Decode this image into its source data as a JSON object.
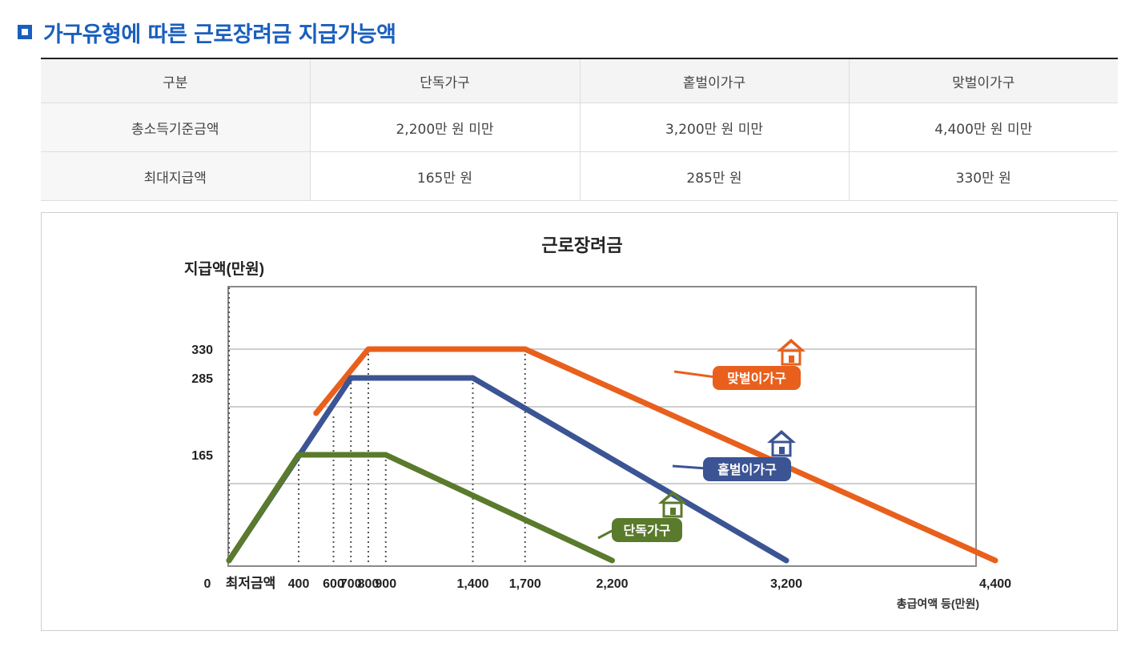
{
  "heading": {
    "title": "가구유형에 따른 근로장려금 지급가능액"
  },
  "table": {
    "headers": [
      "구분",
      "단독가구",
      "홑벌이가구",
      "맞벌이가구"
    ],
    "rows": [
      [
        "총소득기준금액",
        "2,200만 원 미만",
        "3,200만 원 미만",
        "4,400만 원 미만"
      ],
      [
        "최대지급액",
        "165만 원",
        "285만 원",
        "330만 원"
      ]
    ]
  },
  "chart_data": {
    "type": "line",
    "title": "근로장려금",
    "ylabel": "지급액(만원)",
    "xlabel": "총급여액 등(만원)",
    "xlim": [
      0,
      4500
    ],
    "ylim": [
      0,
      390
    ],
    "origin_label": "0",
    "min_label": "최저금액",
    "x_ticks": [
      {
        "value": 400,
        "label": "400"
      },
      {
        "value": 600,
        "label": "600"
      },
      {
        "value": 700,
        "label": "700"
      },
      {
        "value": 800,
        "label": "800"
      },
      {
        "value": 900,
        "label": "900"
      },
      {
        "value": 1400,
        "label": "1,400"
      },
      {
        "value": 1700,
        "label": "1,700"
      },
      {
        "value": 2200,
        "label": "2,200"
      },
      {
        "value": 3200,
        "label": "3,200"
      },
      {
        "value": 4400,
        "label": "4,400"
      }
    ],
    "y_ticks": [
      {
        "value": 165,
        "label": "165"
      },
      {
        "value": 285,
        "label": "285"
      },
      {
        "value": 330,
        "label": "330"
      }
    ],
    "gridlines_y": [
      120,
      240,
      330
    ],
    "dotted_x": [
      400,
      600,
      700,
      800,
      900,
      1400,
      1700
    ],
    "series": [
      {
        "name": "맞벌이가구",
        "color": "#e8601c",
        "points": [
          [
            500,
            230
          ],
          [
            800,
            330
          ],
          [
            1700,
            330
          ],
          [
            4400,
            0
          ]
        ],
        "icon": "house-icon"
      },
      {
        "name": "홑벌이가구",
        "color": "#3b5494",
        "points": [
          [
            0,
            0
          ],
          [
            700,
            285
          ],
          [
            1400,
            285
          ],
          [
            3200,
            0
          ]
        ],
        "icon": "house-icon"
      },
      {
        "name": "단독가구",
        "color": "#5a7a2c",
        "points": [
          [
            0,
            0
          ],
          [
            400,
            165
          ],
          [
            900,
            165
          ],
          [
            2200,
            0
          ]
        ],
        "icon": "house-icon"
      }
    ],
    "grid": true
  },
  "colors": {
    "accent": "#1a5fbd",
    "couple": "#e8601c",
    "single_earner": "#3b5494",
    "single": "#5a7a2c"
  }
}
